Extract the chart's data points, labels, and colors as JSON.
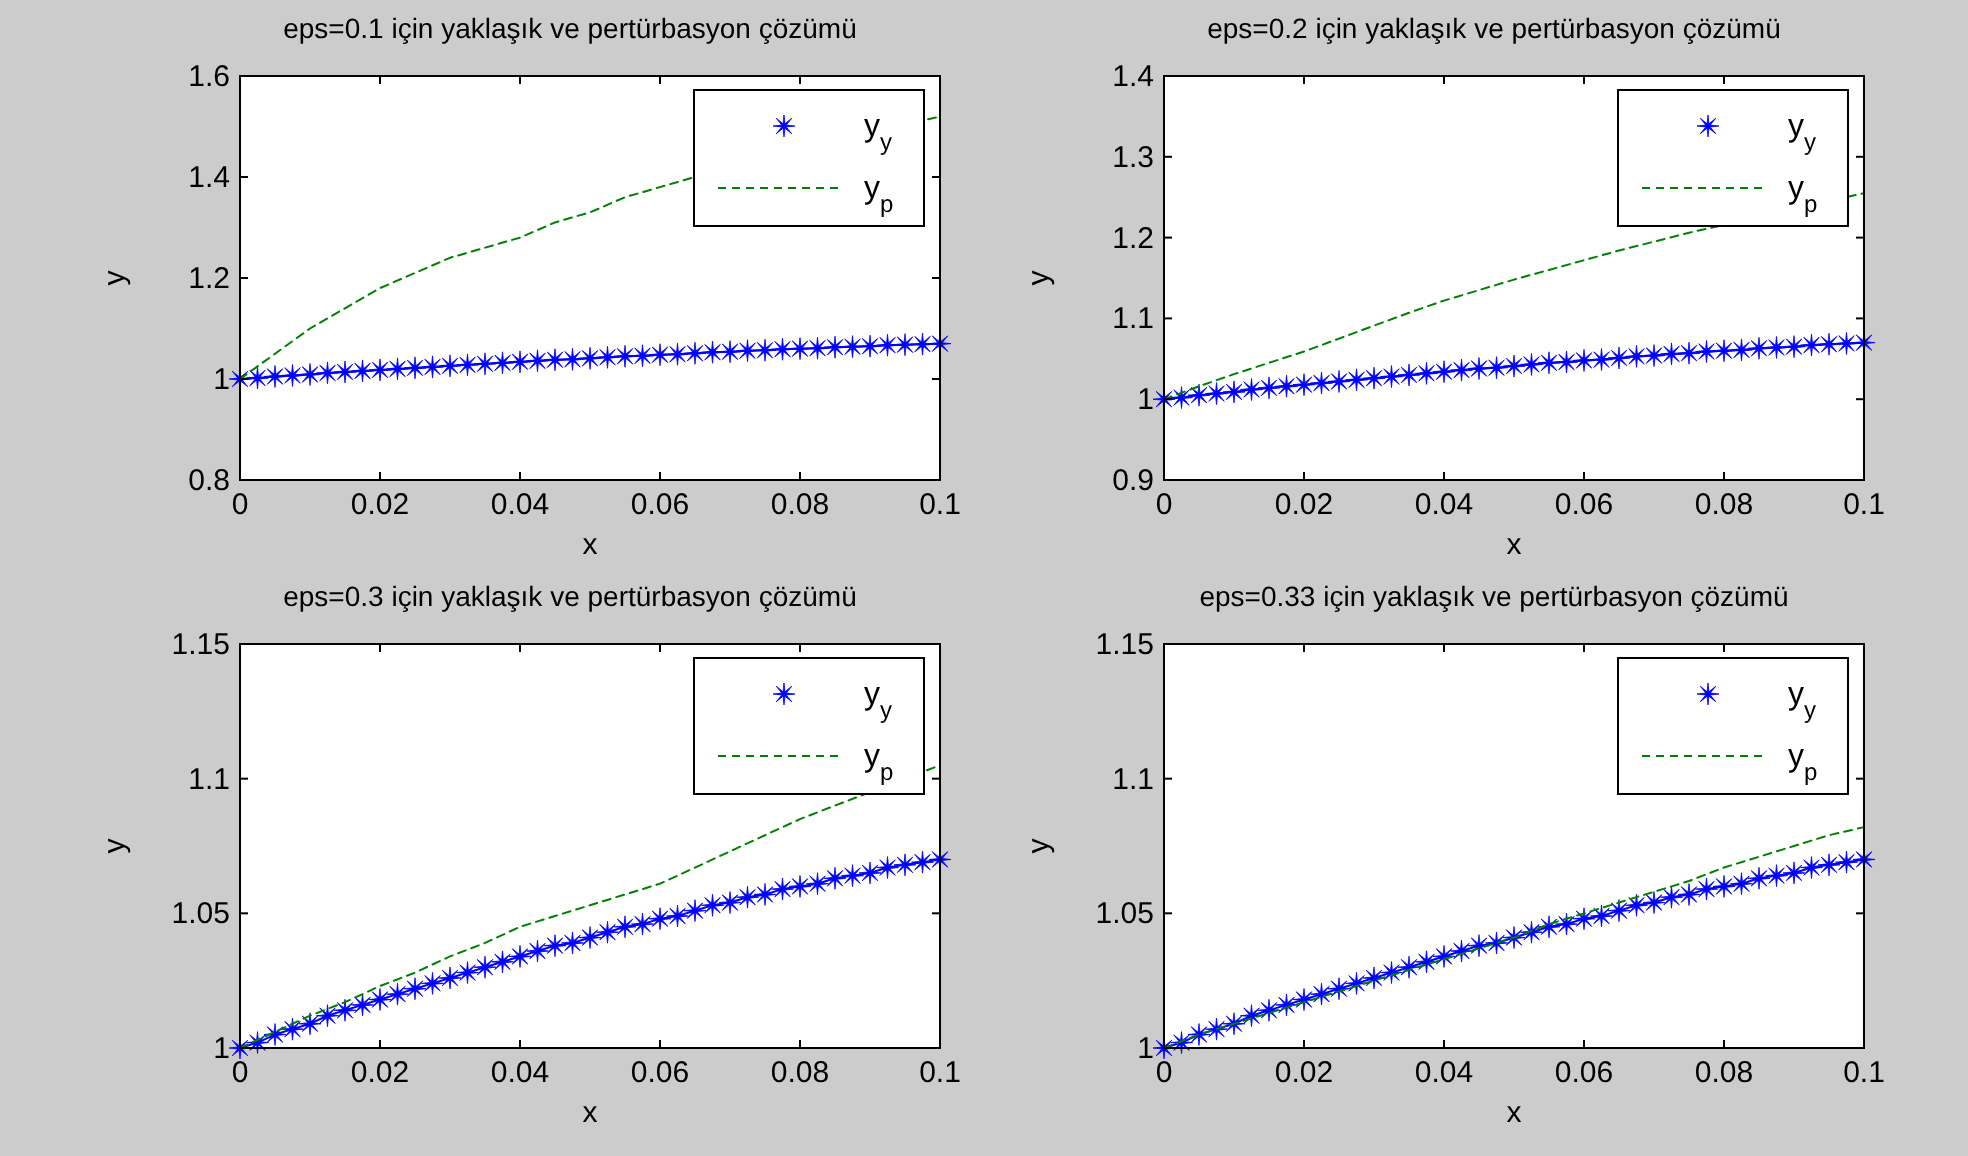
{
  "chart_data": [
    {
      "type": "line",
      "title": "eps=0.1 için yaklaşık ve pertürbasyon çözümü",
      "xlabel": "x",
      "ylabel": "y",
      "xlim": [
        0,
        0.1
      ],
      "xticks": [
        0,
        0.02,
        0.04,
        0.06,
        0.08,
        0.1
      ],
      "ylim": [
        0.8,
        1.6
      ],
      "yticks": [
        0.8,
        1,
        1.2,
        1.4,
        1.6
      ],
      "legend": "top right",
      "grid": false,
      "series": [
        {
          "name": "y$_{y}$",
          "color": "#0000ff",
          "marker": "star",
          "line_style": "solid",
          "x": [
            0,
            0.0025,
            0.005,
            0.0075,
            0.01,
            0.0125,
            0.015,
            0.0175,
            0.02,
            0.0225,
            0.025,
            0.0275,
            0.03,
            0.0325,
            0.035,
            0.0375,
            0.04,
            0.0425,
            0.045,
            0.0475,
            0.05,
            0.0525,
            0.055,
            0.0575,
            0.06,
            0.0625,
            0.065,
            0.0675,
            0.07,
            0.0725,
            0.075,
            0.0775,
            0.08,
            0.0825,
            0.085,
            0.0875,
            0.09,
            0.0925,
            0.095,
            0.0975,
            0.1
          ],
          "values": [
            1.0,
            1.002,
            1.005,
            1.007,
            1.009,
            1.012,
            1.014,
            1.016,
            1.018,
            1.02,
            1.022,
            1.024,
            1.026,
            1.028,
            1.03,
            1.032,
            1.034,
            1.036,
            1.038,
            1.039,
            1.041,
            1.043,
            1.045,
            1.046,
            1.048,
            1.049,
            1.051,
            1.053,
            1.054,
            1.056,
            1.057,
            1.059,
            1.06,
            1.061,
            1.063,
            1.064,
            1.065,
            1.067,
            1.068,
            1.069,
            1.07
          ]
        },
        {
          "name": "y$_{p}$",
          "color": "#008000",
          "marker": "none",
          "line_style": "dashed",
          "x": [
            0,
            0.005,
            0.01,
            0.015,
            0.02,
            0.025,
            0.03,
            0.035,
            0.04,
            0.045,
            0.05,
            0.055,
            0.06,
            0.065,
            0.1
          ],
          "values": [
            1,
            1.05,
            1.1,
            1.14,
            1.18,
            1.21,
            1.24,
            1.26,
            1.28,
            1.31,
            1.33,
            1.36,
            1.38,
            1.4,
            1.52
          ]
        }
      ]
    },
    {
      "type": "line",
      "title": "eps=0.2 için yaklaşık ve pertürbasyon çözümü",
      "xlabel": "x",
      "ylabel": "y",
      "xlim": [
        0,
        0.1
      ],
      "xticks": [
        0,
        0.02,
        0.04,
        0.06,
        0.08,
        0.1
      ],
      "ylim": [
        0.9,
        1.4
      ],
      "yticks": [
        0.9,
        1,
        1.1,
        1.2,
        1.3,
        1.4
      ],
      "legend": "top right",
      "grid": false,
      "series": [
        {
          "name": "y$_{y}$",
          "color": "#0000ff",
          "marker": "star",
          "line_style": "solid",
          "x": [
            0,
            0.0025,
            0.005,
            0.0075,
            0.01,
            0.0125,
            0.015,
            0.0175,
            0.02,
            0.0225,
            0.025,
            0.0275,
            0.03,
            0.0325,
            0.035,
            0.0375,
            0.04,
            0.0425,
            0.045,
            0.0475,
            0.05,
            0.0525,
            0.055,
            0.0575,
            0.06,
            0.0625,
            0.065,
            0.0675,
            0.07,
            0.0725,
            0.075,
            0.0775,
            0.08,
            0.0825,
            0.085,
            0.0875,
            0.09,
            0.0925,
            0.095,
            0.0975,
            0.1
          ],
          "values": [
            1.0,
            1.002,
            1.005,
            1.007,
            1.009,
            1.012,
            1.014,
            1.016,
            1.018,
            1.02,
            1.022,
            1.024,
            1.026,
            1.028,
            1.03,
            1.032,
            1.034,
            1.036,
            1.038,
            1.039,
            1.041,
            1.043,
            1.045,
            1.046,
            1.048,
            1.049,
            1.051,
            1.053,
            1.054,
            1.056,
            1.057,
            1.059,
            1.06,
            1.061,
            1.063,
            1.064,
            1.065,
            1.067,
            1.068,
            1.069,
            1.07
          ]
        },
        {
          "name": "y$_{p}$",
          "color": "#008000",
          "marker": "none",
          "line_style": "dashed",
          "x": [
            0,
            0.005,
            0.01,
            0.015,
            0.02,
            0.025,
            0.03,
            0.035,
            0.04,
            0.045,
            0.05,
            0.055,
            0.06,
            0.065,
            0.07,
            0.075,
            0.1
          ],
          "values": [
            1,
            1.016,
            1.031,
            1.045,
            1.059,
            1.075,
            1.091,
            1.107,
            1.122,
            1.135,
            1.148,
            1.16,
            1.172,
            1.184,
            1.195,
            1.206,
            1.255
          ]
        }
      ]
    },
    {
      "type": "line",
      "title": "eps=0.3 için yaklaşık ve pertürbasyon çözümü",
      "xlabel": "x",
      "ylabel": "y",
      "xlim": [
        0,
        0.1
      ],
      "xticks": [
        0,
        0.02,
        0.04,
        0.06,
        0.08,
        0.1
      ],
      "ylim": [
        1,
        1.15
      ],
      "yticks": [
        1,
        1.05,
        1.1,
        1.15
      ],
      "legend": "top right",
      "grid": false,
      "series": [
        {
          "name": "y$_{y}$",
          "color": "#0000ff",
          "marker": "star",
          "line_style": "solid",
          "x": [
            0,
            0.0025,
            0.005,
            0.0075,
            0.01,
            0.0125,
            0.015,
            0.0175,
            0.02,
            0.0225,
            0.025,
            0.0275,
            0.03,
            0.0325,
            0.035,
            0.0375,
            0.04,
            0.0425,
            0.045,
            0.0475,
            0.05,
            0.0525,
            0.055,
            0.0575,
            0.06,
            0.0625,
            0.065,
            0.0675,
            0.07,
            0.0725,
            0.075,
            0.0775,
            0.08,
            0.0825,
            0.085,
            0.0875,
            0.09,
            0.0925,
            0.095,
            0.0975,
            0.1
          ],
          "values": [
            1.0,
            1.002,
            1.005,
            1.007,
            1.009,
            1.012,
            1.014,
            1.016,
            1.018,
            1.02,
            1.022,
            1.024,
            1.026,
            1.028,
            1.03,
            1.032,
            1.034,
            1.036,
            1.038,
            1.039,
            1.041,
            1.043,
            1.045,
            1.046,
            1.048,
            1.049,
            1.051,
            1.053,
            1.054,
            1.056,
            1.057,
            1.059,
            1.06,
            1.061,
            1.063,
            1.064,
            1.065,
            1.067,
            1.068,
            1.069,
            1.07
          ]
        },
        {
          "name": "y$_{p}$",
          "color": "#008000",
          "marker": "none",
          "line_style": "dashed",
          "x": [
            0,
            0.005,
            0.01,
            0.015,
            0.02,
            0.025,
            0.03,
            0.035,
            0.04,
            0.045,
            0.05,
            0.055,
            0.06,
            0.065,
            0.07,
            0.075,
            0.08,
            0.085,
            0.1
          ],
          "values": [
            1,
            1.006,
            1.012,
            1.017,
            1.023,
            1.028,
            1.034,
            1.039,
            1.045,
            1.049,
            1.053,
            1.057,
            1.061,
            1.067,
            1.073,
            1.079,
            1.085,
            1.09,
            1.105
          ]
        }
      ]
    },
    {
      "type": "line",
      "title": "eps=0.33 için yaklaşık ve pertürbasyon çözümü",
      "xlabel": "x",
      "ylabel": "y",
      "xlim": [
        0,
        0.1
      ],
      "xticks": [
        0,
        0.02,
        0.04,
        0.06,
        0.08,
        0.1
      ],
      "ylim": [
        1,
        1.15
      ],
      "yticks": [
        1,
        1.05,
        1.1,
        1.15
      ],
      "legend": "top right",
      "grid": false,
      "series": [
        {
          "name": "y$_{y}$",
          "color": "#0000ff",
          "marker": "star",
          "line_style": "solid",
          "x": [
            0,
            0.0025,
            0.005,
            0.0075,
            0.01,
            0.0125,
            0.015,
            0.0175,
            0.02,
            0.0225,
            0.025,
            0.0275,
            0.03,
            0.0325,
            0.035,
            0.0375,
            0.04,
            0.0425,
            0.045,
            0.0475,
            0.05,
            0.0525,
            0.055,
            0.0575,
            0.06,
            0.0625,
            0.065,
            0.0675,
            0.07,
            0.0725,
            0.075,
            0.0775,
            0.08,
            0.0825,
            0.085,
            0.0875,
            0.09,
            0.0925,
            0.095,
            0.0975,
            0.1
          ],
          "values": [
            1.0,
            1.002,
            1.005,
            1.007,
            1.009,
            1.012,
            1.014,
            1.016,
            1.018,
            1.02,
            1.022,
            1.024,
            1.026,
            1.028,
            1.03,
            1.032,
            1.034,
            1.036,
            1.038,
            1.039,
            1.041,
            1.043,
            1.045,
            1.046,
            1.048,
            1.049,
            1.051,
            1.053,
            1.054,
            1.056,
            1.057,
            1.059,
            1.06,
            1.061,
            1.063,
            1.064,
            1.065,
            1.067,
            1.068,
            1.069,
            1.07
          ]
        },
        {
          "name": "y$_{p}$",
          "color": "#008000",
          "marker": "none",
          "line_style": "dashed",
          "x": [
            0,
            0.005,
            0.01,
            0.015,
            0.02,
            0.025,
            0.03,
            0.035,
            0.04,
            0.045,
            0.05,
            0.055,
            0.06,
            0.065,
            0.07,
            0.075,
            0.08,
            0.085,
            0.09,
            0.095,
            0.1
          ],
          "values": [
            1,
            1.005,
            1.009,
            1.013,
            1.017,
            1.021,
            1.025,
            1.029,
            1.033,
            1.037,
            1.041,
            1.046,
            1.05,
            1.054,
            1.058,
            1.062,
            1.067,
            1.071,
            1.075,
            1.079,
            1.082
          ]
        }
      ]
    }
  ]
}
